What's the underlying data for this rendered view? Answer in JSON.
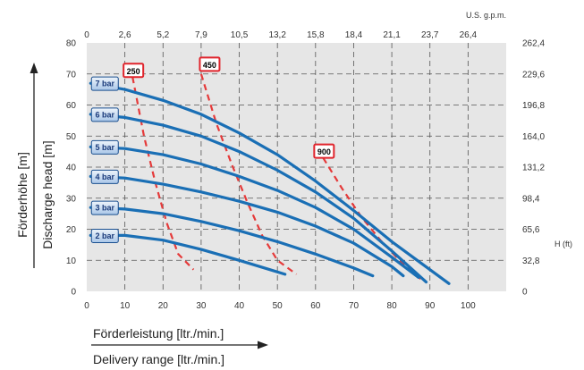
{
  "chart_data": {
    "type": "line",
    "x_axis": {
      "label_de": "Förderleistung [ltr./min.]",
      "label_en": "Delivery range [ltr./min.]",
      "min": 0,
      "max": 110,
      "ticks": [
        0,
        10,
        20,
        30,
        40,
        50,
        60,
        70,
        80,
        90,
        100
      ]
    },
    "y_axis": {
      "label_de": "Förderhöhe [m]",
      "label_en": "Discharge head [m]",
      "min": 0,
      "max": 80,
      "ticks": [
        0,
        10,
        20,
        30,
        40,
        50,
        60,
        70,
        80
      ]
    },
    "top_axis": {
      "unit": "U.S. g.p.m.",
      "tick_x": [
        0,
        10,
        20,
        30,
        40,
        50,
        60,
        70,
        80,
        90,
        100
      ],
      "tick_labels": [
        "0",
        "2,6",
        "5,2",
        "7,9",
        "10,5",
        "13,2",
        "15,8",
        "18,4",
        "21,1",
        "23,7",
        "26,4"
      ]
    },
    "right_axis": {
      "unit": "H (ft)",
      "tick_y": [
        0,
        10,
        20,
        30,
        40,
        50,
        60,
        70,
        80
      ],
      "tick_labels": [
        "0",
        "32,8",
        "65,6",
        "98,4",
        "131,2",
        "164,0",
        "196,8",
        "229,6",
        "262,4"
      ]
    },
    "grid": true,
    "series": [
      {
        "name": "2 bar",
        "color": "#1a6fb5",
        "points": [
          [
            1,
            18
          ],
          [
            10,
            18
          ],
          [
            20,
            16.5
          ],
          [
            30,
            13.5
          ],
          [
            40,
            10
          ],
          [
            48,
            7
          ],
          [
            52,
            5.5
          ]
        ]
      },
      {
        "name": "3 bar",
        "color": "#1a6fb5",
        "points": [
          [
            1,
            27
          ],
          [
            10,
            26.5
          ],
          [
            20,
            25
          ],
          [
            30,
            22.5
          ],
          [
            40,
            19.5
          ],
          [
            50,
            16
          ],
          [
            60,
            12
          ],
          [
            70,
            7.5
          ],
          [
            75,
            5
          ]
        ]
      },
      {
        "name": "4 bar",
        "color": "#1a6fb5",
        "points": [
          [
            1,
            37
          ],
          [
            10,
            36.5
          ],
          [
            20,
            34.5
          ],
          [
            30,
            32
          ],
          [
            40,
            29
          ],
          [
            50,
            25.5
          ],
          [
            60,
            21
          ],
          [
            70,
            15.5
          ],
          [
            80,
            8
          ],
          [
            83,
            5
          ]
        ]
      },
      {
        "name": "5 bar",
        "color": "#1a6fb5",
        "points": [
          [
            1,
            46.5
          ],
          [
            10,
            46
          ],
          [
            20,
            44
          ],
          [
            30,
            41
          ],
          [
            40,
            37
          ],
          [
            50,
            32.5
          ],
          [
            60,
            27
          ],
          [
            70,
            20
          ],
          [
            80,
            11
          ],
          [
            87,
            4.5
          ]
        ]
      },
      {
        "name": "6 bar",
        "color": "#1a6fb5",
        "points": [
          [
            1,
            57
          ],
          [
            10,
            56
          ],
          [
            20,
            53.5
          ],
          [
            30,
            50
          ],
          [
            40,
            45
          ],
          [
            50,
            39
          ],
          [
            60,
            32
          ],
          [
            70,
            23.5
          ],
          [
            80,
            13
          ],
          [
            89,
            3
          ]
        ]
      },
      {
        "name": "7 bar",
        "color": "#1a6fb5",
        "points": [
          [
            1,
            67
          ],
          [
            10,
            65
          ],
          [
            20,
            61.5
          ],
          [
            30,
            57
          ],
          [
            40,
            51
          ],
          [
            50,
            44
          ],
          [
            60,
            35.5
          ],
          [
            70,
            26
          ],
          [
            80,
            16
          ],
          [
            90,
            7
          ],
          [
            95,
            2.5
          ]
        ]
      }
    ],
    "speed_lines": [
      {
        "name": "250",
        "color": "#e53a3a",
        "points": [
          [
            12,
            69
          ],
          [
            15,
            50
          ],
          [
            18,
            35
          ],
          [
            21,
            22
          ],
          [
            24,
            12
          ],
          [
            28,
            7
          ]
        ]
      },
      {
        "name": "450",
        "color": "#e53a3a",
        "points": [
          [
            30,
            70
          ],
          [
            34,
            54
          ],
          [
            38,
            41
          ],
          [
            42,
            29
          ],
          [
            46,
            18
          ],
          [
            50,
            10
          ],
          [
            55,
            5.5
          ]
        ]
      },
      {
        "name": "900",
        "color": "#e53a3a",
        "points": [
          [
            62,
            43
          ],
          [
            67,
            33
          ],
          [
            72,
            24
          ],
          [
            77,
            16.5
          ],
          [
            82,
            10
          ],
          [
            88,
            3.5
          ]
        ]
      }
    ],
    "series_labels": [
      {
        "text": "2 bar",
        "x": 1,
        "y": 18
      },
      {
        "text": "3 bar",
        "x": 1,
        "y": 27
      },
      {
        "text": "4 bar",
        "x": 1,
        "y": 37
      },
      {
        "text": "5 bar",
        "x": 1,
        "y": 46.5
      },
      {
        "text": "6 bar",
        "x": 1,
        "y": 57
      },
      {
        "text": "7 bar",
        "x": 1,
        "y": 67
      }
    ],
    "speed_labels": [
      {
        "text": "250",
        "x": 12,
        "y": 71
      },
      {
        "text": "450",
        "x": 32,
        "y": 73
      },
      {
        "text": "900",
        "x": 62,
        "y": 45
      }
    ]
  }
}
